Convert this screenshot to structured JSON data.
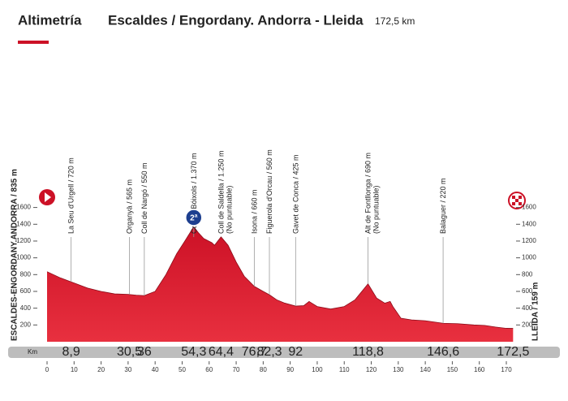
{
  "chart_data": {
    "type": "area",
    "title": "Altimetría",
    "route": "Escaldes / Engordany. Andorra - Lleida",
    "distance": "172,5 km",
    "color": "#cc1126",
    "xlim": [
      0,
      172.5
    ],
    "ylim": [
      0,
      1600
    ],
    "yticks": [
      200,
      400,
      600,
      800,
      1000,
      1200,
      1400,
      1600
    ],
    "xticks": [
      0,
      10,
      20,
      30,
      40,
      50,
      60,
      70,
      80,
      90,
      100,
      110,
      120,
      130,
      140,
      150,
      160,
      170
    ],
    "km_label": "Km",
    "start": {
      "label": "ESCALDES-ENGORDANY.ANDORRA / 835 m"
    },
    "finish": {
      "label": "LLEIDA / 159 m",
      "km": {
        "value": 172.5,
        "label": "172,5"
      }
    },
    "waypoints": [
      {
        "label": "La Seu d'Urgell / 720 m",
        "km": {
          "value": 8.9,
          "label": "8,9"
        }
      },
      {
        "label": "Organyà / 565 m",
        "km": {
          "value": 30.5,
          "label": "30,5"
        }
      },
      {
        "label": "Coll de Nargó / 550 m",
        "km": 36
      },
      {
        "label": "Coll de Bóixols / 1.370 m",
        "km": {
          "value": 54.3,
          "label": "54,3"
        },
        "category": "2ª"
      },
      {
        "label": "Coll de Saldella / 1.250 m",
        "note": "(No puntuable)",
        "km": {
          "value": 64.4,
          "label": "64,4"
        }
      },
      {
        "label": "Isona / 660 m",
        "km": {
          "value": 76.7,
          "label": "76,7"
        }
      },
      {
        "label": "Figuerola d'Orcau / 560 m",
        "km": {
          "value": 82.3,
          "label": "82,3"
        }
      },
      {
        "label": "Gavet de Conca / 425 m",
        "km": 92
      },
      {
        "label": "Alt de Fontllonga / 690 m",
        "note": "(No puntuable)",
        "km": {
          "value": 118.8,
          "label": "118,8"
        }
      },
      {
        "label": "Balaguer / 220 m",
        "km": {
          "value": 146.6,
          "label": "146,6"
        }
      }
    ],
    "profile": {
      "x": [
        0,
        5,
        10,
        15,
        20,
        25,
        30,
        33,
        36,
        40,
        44,
        48,
        51,
        54.3,
        56,
        58,
        61,
        62,
        64.4,
        67,
        70,
        73,
        76.7,
        80,
        82.3,
        85,
        88,
        92,
        95,
        97,
        100,
        105,
        110,
        114,
        118.8,
        122,
        125,
        127,
        128,
        131,
        135,
        140,
        146.6,
        152,
        158,
        162,
        166,
        170,
        172.5
      ],
      "y": [
        835,
        760,
        700,
        640,
        600,
        570,
        565,
        555,
        550,
        600,
        800,
        1050,
        1200,
        1370,
        1300,
        1230,
        1180,
        1150,
        1250,
        1150,
        950,
        780,
        660,
        600,
        560,
        500,
        460,
        425,
        430,
        480,
        420,
        390,
        420,
        500,
        690,
        520,
        460,
        480,
        420,
        280,
        260,
        250,
        220,
        215,
        200,
        195,
        175,
        160,
        159
      ]
    }
  }
}
